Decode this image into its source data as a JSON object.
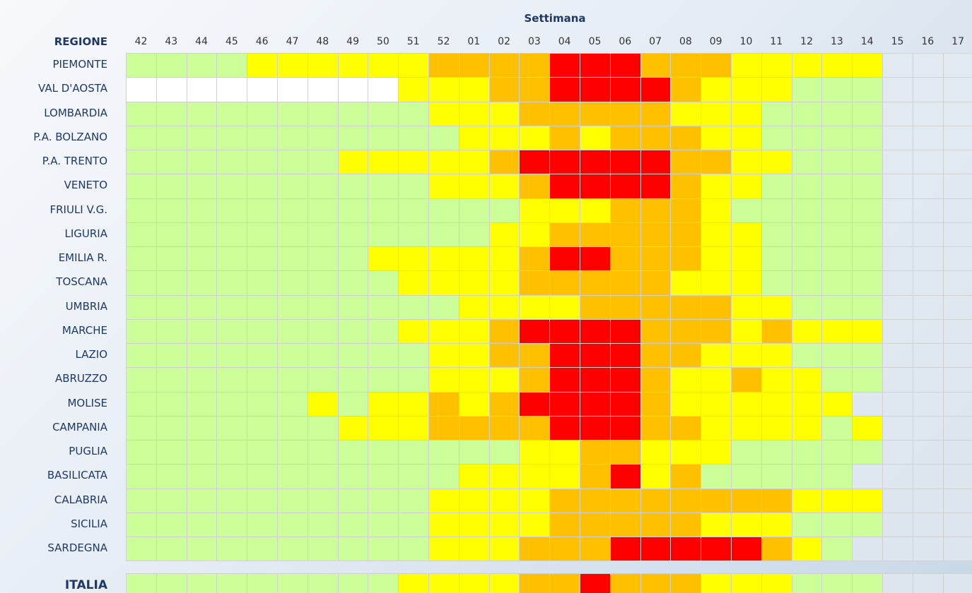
{
  "header": "Settimana",
  "row_header": "REGIONE",
  "weeks": [
    "42",
    "43",
    "44",
    "45",
    "46",
    "47",
    "48",
    "49",
    "50",
    "51",
    "52",
    "01",
    "02",
    "03",
    "04",
    "05",
    "06",
    "07",
    "08",
    "09",
    "10",
    "11",
    "12",
    "13",
    "14",
    "15",
    "16",
    "17"
  ],
  "palette": {
    "W": "#ffffff",
    "G": "#ccff99",
    "Y": "#ffff00",
    "O": "#ffc000",
    "R": "#ff0000",
    "none": "#e4ebf2"
  },
  "rows": [
    {
      "label": "PIEMONTE",
      "levels": [
        "G",
        "G",
        "G",
        "G",
        "Y",
        "Y",
        "Y",
        "Y",
        "Y",
        "Y",
        "O",
        "O",
        "O",
        "O",
        "R",
        "R",
        "R",
        "O",
        "O",
        "O",
        "Y",
        "Y",
        "Y",
        "Y",
        "Y"
      ]
    },
    {
      "label": "VAL D'AOSTA",
      "levels": [
        "W",
        "W",
        "W",
        "W",
        "W",
        "W",
        "W",
        "W",
        "W",
        "Y",
        "Y",
        "Y",
        "O",
        "O",
        "R",
        "R",
        "R",
        "R",
        "O",
        "Y",
        "Y",
        "Y",
        "G",
        "G",
        "G"
      ]
    },
    {
      "label": "LOMBARDIA",
      "levels": [
        "G",
        "G",
        "G",
        "G",
        "G",
        "G",
        "G",
        "G",
        "G",
        "G",
        "Y",
        "Y",
        "Y",
        "O",
        "O",
        "O",
        "O",
        "O",
        "Y",
        "Y",
        "Y",
        "G",
        "G",
        "G",
        "G"
      ]
    },
    {
      "label": "P.A. BOLZANO",
      "levels": [
        "G",
        "G",
        "G",
        "G",
        "G",
        "G",
        "G",
        "G",
        "G",
        "G",
        "G",
        "Y",
        "Y",
        "Y",
        "O",
        "Y",
        "O",
        "O",
        "O",
        "Y",
        "Y",
        "G",
        "G",
        "G",
        "G"
      ]
    },
    {
      "label": "P.A. TRENTO",
      "levels": [
        "G",
        "G",
        "G",
        "G",
        "G",
        "G",
        "G",
        "Y",
        "Y",
        "Y",
        "Y",
        "Y",
        "O",
        "R",
        "R",
        "R",
        "R",
        "R",
        "O",
        "O",
        "Y",
        "Y",
        "G",
        "G",
        "G"
      ]
    },
    {
      "label": "VENETO",
      "levels": [
        "G",
        "G",
        "G",
        "G",
        "G",
        "G",
        "G",
        "G",
        "G",
        "G",
        "Y",
        "Y",
        "Y",
        "O",
        "R",
        "R",
        "R",
        "R",
        "O",
        "Y",
        "Y",
        "G",
        "G",
        "G",
        "G"
      ]
    },
    {
      "label": "FRIULI V.G.",
      "levels": [
        "G",
        "G",
        "G",
        "G",
        "G",
        "G",
        "G",
        "G",
        "G",
        "G",
        "G",
        "G",
        "G",
        "Y",
        "Y",
        "Y",
        "O",
        "O",
        "O",
        "Y",
        "G",
        "G",
        "G",
        "G",
        "G"
      ]
    },
    {
      "label": "LIGURIA",
      "levels": [
        "G",
        "G",
        "G",
        "G",
        "G",
        "G",
        "G",
        "G",
        "G",
        "G",
        "G",
        "G",
        "Y",
        "Y",
        "O",
        "O",
        "O",
        "O",
        "O",
        "Y",
        "Y",
        "G",
        "G",
        "G",
        "G"
      ]
    },
    {
      "label": "EMILIA R.",
      "levels": [
        "G",
        "G",
        "G",
        "G",
        "G",
        "G",
        "G",
        "G",
        "Y",
        "Y",
        "Y",
        "Y",
        "Y",
        "O",
        "R",
        "R",
        "O",
        "O",
        "O",
        "Y",
        "Y",
        "G",
        "G",
        "G",
        "G"
      ]
    },
    {
      "label": "TOSCANA",
      "levels": [
        "G",
        "G",
        "G",
        "G",
        "G",
        "G",
        "G",
        "G",
        "G",
        "Y",
        "Y",
        "Y",
        "Y",
        "O",
        "O",
        "O",
        "O",
        "O",
        "Y",
        "Y",
        "Y",
        "G",
        "G",
        "G",
        "G"
      ]
    },
    {
      "label": "UMBRIA",
      "levels": [
        "G",
        "G",
        "G",
        "G",
        "G",
        "G",
        "G",
        "G",
        "G",
        "G",
        "G",
        "Y",
        "Y",
        "Y",
        "Y",
        "O",
        "O",
        "O",
        "O",
        "O",
        "Y",
        "Y",
        "G",
        "G",
        "G"
      ]
    },
    {
      "label": "MARCHE",
      "levels": [
        "G",
        "G",
        "G",
        "G",
        "G",
        "G",
        "G",
        "G",
        "G",
        "Y",
        "Y",
        "Y",
        "O",
        "R",
        "R",
        "R",
        "R",
        "O",
        "O",
        "O",
        "Y",
        "O",
        "Y",
        "Y",
        "Y"
      ]
    },
    {
      "label": "LAZIO",
      "levels": [
        "G",
        "G",
        "G",
        "G",
        "G",
        "G",
        "G",
        "G",
        "G",
        "G",
        "Y",
        "Y",
        "O",
        "O",
        "R",
        "R",
        "R",
        "O",
        "O",
        "Y",
        "Y",
        "Y",
        "G",
        "G",
        "G"
      ]
    },
    {
      "label": "ABRUZZO",
      "levels": [
        "G",
        "G",
        "G",
        "G",
        "G",
        "G",
        "G",
        "G",
        "G",
        "G",
        "Y",
        "Y",
        "Y",
        "O",
        "R",
        "R",
        "R",
        "O",
        "Y",
        "Y",
        "O",
        "Y",
        "Y",
        "G",
        "G"
      ]
    },
    {
      "label": "MOLISE",
      "levels": [
        "G",
        "G",
        "G",
        "G",
        "G",
        "G",
        "Y",
        "G",
        "Y",
        "Y",
        "O",
        "Y",
        "O",
        "R",
        "R",
        "R",
        "R",
        "O",
        "Y",
        "Y",
        "Y",
        "Y",
        "Y",
        "Y",
        null
      ]
    },
    {
      "label": "CAMPANIA",
      "levels": [
        "G",
        "G",
        "G",
        "G",
        "G",
        "G",
        "G",
        "Y",
        "Y",
        "Y",
        "O",
        "O",
        "O",
        "O",
        "R",
        "R",
        "R",
        "O",
        "O",
        "Y",
        "Y",
        "Y",
        "Y",
        "G",
        "Y"
      ]
    },
    {
      "label": "PUGLIA",
      "levels": [
        "G",
        "G",
        "G",
        "G",
        "G",
        "G",
        "G",
        "G",
        "G",
        "G",
        "G",
        "G",
        "G",
        "Y",
        "Y",
        "O",
        "O",
        "Y",
        "Y",
        "Y",
        "G",
        "G",
        "G",
        "G",
        "G"
      ]
    },
    {
      "label": "BASILICATA",
      "levels": [
        "G",
        "G",
        "G",
        "G",
        "G",
        "G",
        "G",
        "G",
        "G",
        "G",
        "G",
        "Y",
        "Y",
        "Y",
        "Y",
        "O",
        "R",
        "Y",
        "O",
        "G",
        "G",
        "G",
        "G",
        "G",
        null
      ]
    },
    {
      "label": "CALABRIA",
      "levels": [
        "G",
        "G",
        "G",
        "G",
        "G",
        "G",
        "G",
        "G",
        "G",
        "G",
        "Y",
        "Y",
        "Y",
        "Y",
        "O",
        "O",
        "O",
        "O",
        "O",
        "O",
        "O",
        "O",
        "Y",
        "Y",
        "Y"
      ]
    },
    {
      "label": "SICILIA",
      "levels": [
        "G",
        "G",
        "G",
        "G",
        "G",
        "G",
        "G",
        "G",
        "G",
        "G",
        "Y",
        "Y",
        "Y",
        "Y",
        "O",
        "O",
        "O",
        "O",
        "O",
        "Y",
        "Y",
        "Y",
        "G",
        "G",
        "G"
      ]
    },
    {
      "label": "SARDEGNA",
      "levels": [
        "G",
        "G",
        "G",
        "G",
        "G",
        "G",
        "G",
        "G",
        "G",
        "G",
        "Y",
        "Y",
        "Y",
        "O",
        "O",
        "O",
        "R",
        "R",
        "R",
        "R",
        "R",
        "O",
        "Y",
        "G",
        null
      ]
    }
  ],
  "total": {
    "label": "ITALIA",
    "levels": [
      "G",
      "G",
      "G",
      "G",
      "G",
      "G",
      "G",
      "G",
      "G",
      "Y",
      "Y",
      "Y",
      "Y",
      "O",
      "O",
      "R",
      "O",
      "O",
      "O",
      "Y",
      "Y",
      "Y",
      "G",
      "G",
      "G"
    ]
  }
}
